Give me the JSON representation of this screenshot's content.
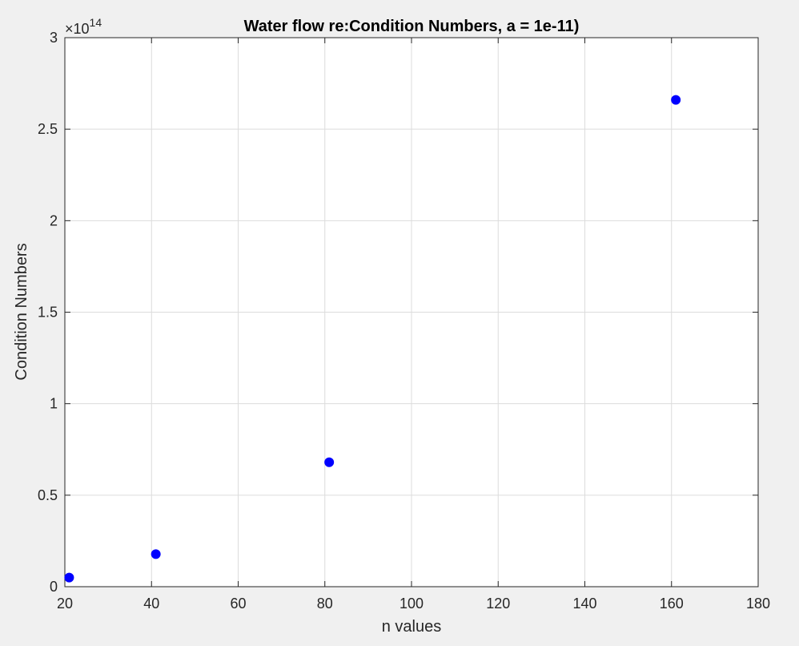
{
  "chart_data": {
    "type": "scatter",
    "title": "Water flow re:Condition Numbers, a = 1e-11)",
    "xlabel": "n values",
    "ylabel": "Condition Numbers",
    "exponent_base": "×10",
    "exponent_power": "14",
    "xlim": [
      20,
      180
    ],
    "ylim": [
      0,
      3
    ],
    "xticks": [
      "20",
      "40",
      "60",
      "80",
      "100",
      "120",
      "140",
      "160",
      "180"
    ],
    "yticks": [
      "0",
      "0.5",
      "1",
      "1.5",
      "2",
      "2.5",
      "3"
    ],
    "grid": true,
    "series": [
      {
        "points": [
          {
            "x": 21,
            "y": 0.05
          },
          {
            "x": 41,
            "y": 0.178
          },
          {
            "x": 81,
            "y": 0.68
          },
          {
            "x": 161,
            "y": 2.66
          }
        ]
      }
    ],
    "marker_color": "#0000ff"
  }
}
